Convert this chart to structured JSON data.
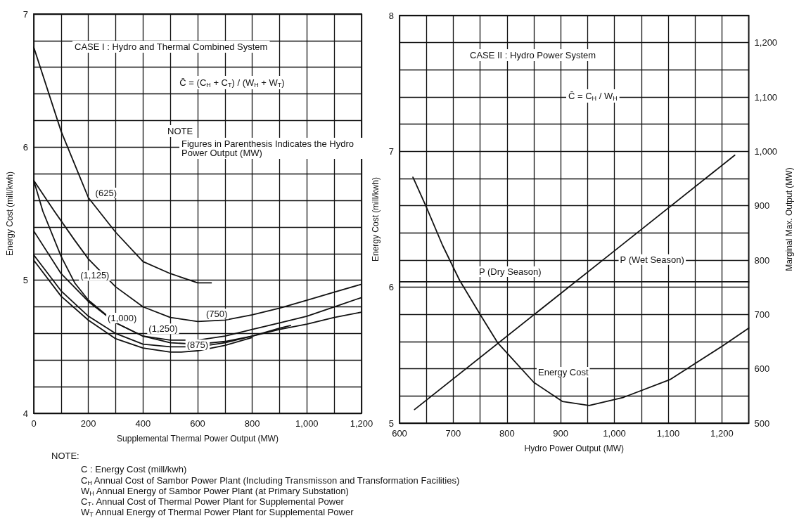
{
  "chart_data": [
    {
      "type": "line",
      "xlabel": "Supplemental Thermal Power Output (MW)",
      "ylabel": "Energy Cost (mill/kwh)",
      "xlim": [
        0,
        1200
      ],
      "ylim": [
        4,
        7
      ],
      "xticks": [
        0,
        {
          "value": 100,
          "label": null
        },
        200,
        {
          "value": 300,
          "label": null
        },
        400,
        {
          "value": 500,
          "label": null
        },
        600,
        {
          "value": 700,
          "label": null
        },
        800,
        {
          "value": 900,
          "label": null
        },
        {
          "value": 1000,
          "label": "1,000"
        },
        {
          "value": 1100,
          "label": null
        },
        {
          "value": 1200,
          "label": "1,200"
        }
      ],
      "yticks": [
        4,
        {
          "value": 4.2,
          "label": null
        },
        {
          "value": 4.4,
          "label": null
        },
        {
          "value": 4.6,
          "label": null
        },
        {
          "value": 4.8,
          "label": null
        },
        5,
        {
          "value": 5.2,
          "label": null
        },
        {
          "value": 5.4,
          "label": null
        },
        {
          "value": 5.6,
          "label": null
        },
        {
          "value": 5.8,
          "label": null
        },
        6,
        {
          "value": 6.2,
          "label": null
        },
        {
          "value": 6.4,
          "label": null
        },
        {
          "value": 6.6,
          "label": null
        },
        {
          "value": 6.8,
          "label": null
        },
        7
      ],
      "grid": true,
      "marker": "none",
      "line_style": "solid",
      "series": [
        {
          "color": "#111111",
          "x": [
            0,
            100,
            200,
            300,
            400,
            500,
            600,
            650
          ],
          "values": [
            6.75,
            6.12,
            5.62,
            5.36,
            5.14,
            5.05,
            4.98,
            4.98
          ]
        },
        {
          "color": "#111111",
          "x": [
            0,
            75,
            150,
            200,
            300,
            400,
            500,
            600,
            700,
            800,
            900,
            1000,
            1100,
            1200
          ],
          "values": [
            5.75,
            5.52,
            5.3,
            5.16,
            4.95,
            4.8,
            4.72,
            4.69,
            4.7,
            4.74,
            4.79,
            4.85,
            4.91,
            4.97
          ]
        },
        {
          "color": "#111111",
          "x": [
            0,
            100,
            200,
            300,
            400,
            500,
            600,
            700,
            800,
            900,
            1000,
            1100,
            1200
          ],
          "values": [
            5.37,
            5.05,
            4.84,
            4.68,
            4.58,
            4.55,
            4.55,
            4.58,
            4.63,
            4.68,
            4.73,
            4.8,
            4.87
          ]
        },
        {
          "color": "#111111",
          "x": [
            0,
            33,
            100,
            150,
            200,
            300,
            400,
            500,
            600,
            700,
            800,
            900,
            940
          ],
          "values": [
            5.75,
            5.52,
            5.18,
            4.98,
            4.85,
            4.68,
            4.58,
            4.53,
            4.52,
            4.54,
            4.58,
            4.64,
            4.66
          ]
        },
        {
          "color": "#111111",
          "x": [
            0,
            100,
            200,
            300,
            400,
            500,
            600,
            700,
            800,
            900,
            1000,
            1100,
            1200
          ],
          "values": [
            5.19,
            4.92,
            4.73,
            4.6,
            4.52,
            4.5,
            4.5,
            4.53,
            4.58,
            4.63,
            4.67,
            4.72,
            4.76
          ]
        },
        {
          "color": "#111111",
          "x": [
            0,
            100,
            200,
            300,
            400,
            500,
            540,
            600,
            700,
            800
          ],
          "values": [
            5.15,
            4.88,
            4.7,
            4.56,
            4.49,
            4.46,
            4.46,
            4.47,
            4.51,
            4.57
          ]
        }
      ],
      "annotations": [
        "CASE I : Hydro and Thermal Combined System",
        "C̄ = (C$_{H}$ + C$_{T}$) / (W$_{H}$ + W$_{T}$)",
        "NOTE",
        "Figures in Parenthesis Indicates the Hydro Power Output (MW)",
        "NOTE:",
        "C : Energy Cost (mill/kwh)",
        "C$_{H}$ Annual Cost of Sambor Power Plant (Including Transmisson and Transformation Facilities)",
        "W$_{H}$ Annual Energy of Sambor Power Plant (at Primary Substation)",
        "C$_{T}$. Annual Cost of Thermal Power Plant for Supplemental Power",
        "W$_{T}$ Annual Energy of Thermal Power Plant for Supplemental Power",
        {
          "text": "(625)",
          "x": 205,
          "y": 5.6
        },
        {
          "text": "(750)",
          "x": 610,
          "y": 4.69
        },
        {
          "text": "(1,250)",
          "x": 400,
          "y": 4.58
        },
        {
          "text": "(1,125)",
          "x": 150,
          "y": 4.98
        },
        {
          "text": "(1,000)",
          "x": 250,
          "y": 4.66
        },
        {
          "text": "(875)",
          "x": 540,
          "y": 4.46
        }
      ]
    },
    {
      "type": "line",
      "xlabel": "Hydro Power Output (MW)",
      "ylabel": "Energy Cost (mill/kwh)",
      "y2label": "Marginal Max. Output (MW)",
      "xlim": [
        600,
        1250
      ],
      "ylim": [
        5,
        8
      ],
      "y2lim": [
        500,
        1250
      ],
      "xticks": [
        600,
        {
          "value": 650,
          "label": null
        },
        700,
        {
          "value": 750,
          "label": null
        },
        800,
        {
          "value": 850,
          "label": null
        },
        900,
        {
          "value": 950,
          "label": null
        },
        {
          "value": 1000,
          "label": "1,000"
        },
        {
          "value": 1050,
          "label": null
        },
        {
          "value": 1100,
          "label": "1,100"
        },
        {
          "value": 1150,
          "label": null
        },
        {
          "value": 1200,
          "label": "1,200"
        }
      ],
      "yticks": [
        5,
        {
          "value": 5.2,
          "label": null
        },
        {
          "value": 5.4,
          "label": null
        },
        {
          "value": 5.6,
          "label": null
        },
        {
          "value": 5.8,
          "label": null
        },
        6,
        {
          "value": 6.2,
          "label": null
        },
        {
          "value": 6.4,
          "label": null
        },
        {
          "value": 6.6,
          "label": null
        },
        {
          "value": 6.8,
          "label": null
        },
        7,
        {
          "value": 7.2,
          "label": null
        },
        {
          "value": 7.4,
          "label": null
        },
        {
          "value": 7.6,
          "label": null
        },
        {
          "value": 7.8,
          "label": null
        },
        8
      ],
      "y2ticks": [
        500,
        600,
        700,
        800,
        900,
        {
          "value": 1000,
          "label": "1,000"
        },
        {
          "value": 1100,
          "label": "1,100"
        },
        {
          "value": 1200,
          "label": "1,200"
        }
      ],
      "grid": true,
      "marker": "none",
      "line_style": "solid",
      "series": [
        {
          "name": "Energy Cost",
          "color": "#111111",
          "x": [
            625,
            650,
            680,
            712,
            750,
            783,
            850,
            903,
            953,
            1017,
            1103,
            1202,
            1250
          ],
          "values": [
            6.81,
            6.59,
            6.31,
            6.05,
            5.8,
            5.59,
            5.3,
            5.16,
            5.13,
            5.19,
            5.32,
            5.57,
            5.7
          ]
        },
        {
          "name": "P (Dry Season)",
          "color": "#111111",
          "axis": "y2",
          "x": [
            600,
            740,
            1250
          ],
          "values": [
            760,
            760,
            760
          ]
        },
        {
          "name": "P (Wet Season)",
          "color": "#111111",
          "axis": "y2",
          "x": [
            628,
            1000,
            1224
          ],
          "values": [
            525,
            817,
            993
          ]
        }
      ],
      "annotations": [
        "CASE II : Hydro Power System",
        "C̄ = C$_{H}$ / W$_{H}$"
      ]
    }
  ]
}
